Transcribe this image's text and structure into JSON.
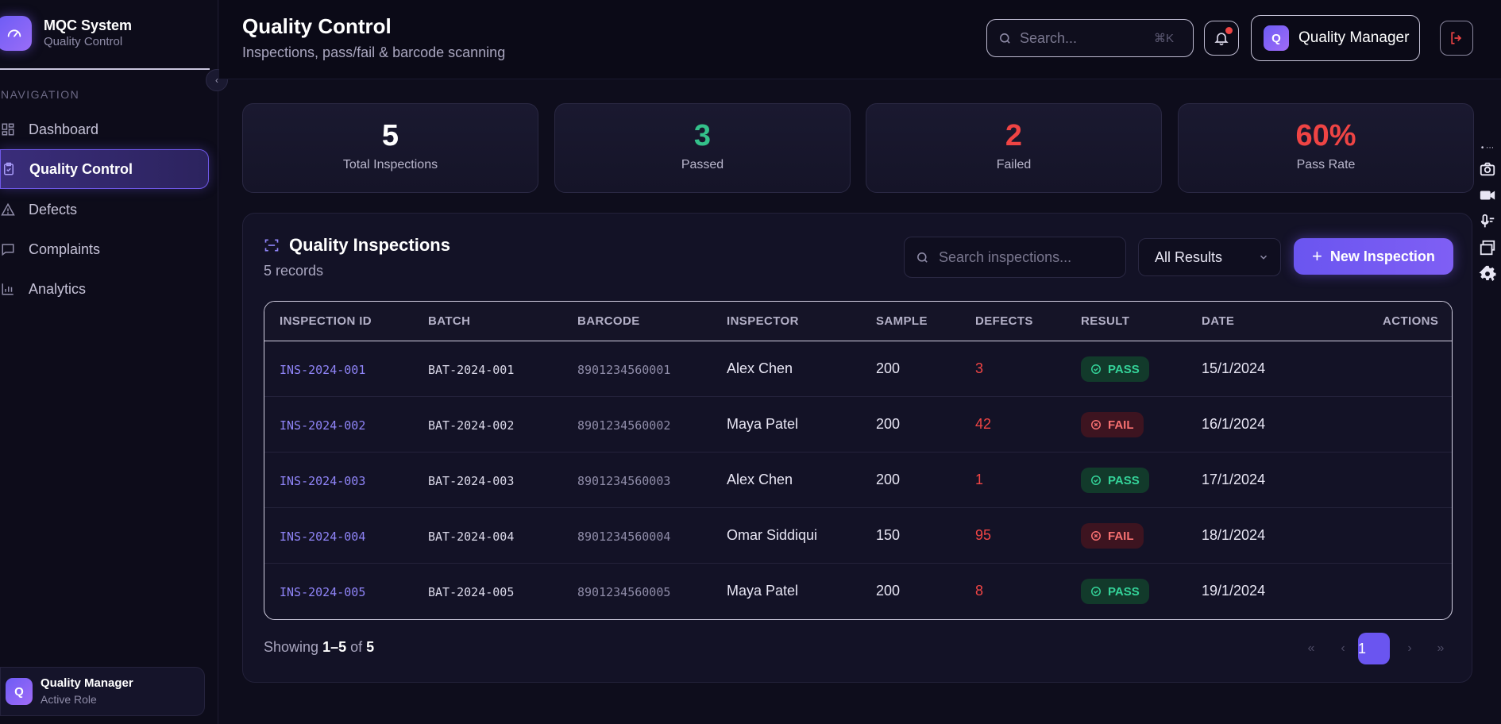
{
  "brand": {
    "title": "MQC System",
    "subtitle": "Quality Control"
  },
  "sidebar": {
    "heading": "NAVIGATION",
    "items": [
      {
        "label": "Dashboard",
        "icon": "grid-icon",
        "active": false
      },
      {
        "label": "Quality Control",
        "icon": "clipboard-check-icon",
        "active": true
      },
      {
        "label": "Defects",
        "icon": "warning-icon",
        "active": false
      },
      {
        "label": "Complaints",
        "icon": "message-icon",
        "active": false
      },
      {
        "label": "Analytics",
        "icon": "bar-chart-icon",
        "active": false
      }
    ],
    "role": {
      "initial": "Q",
      "name": "Quality Manager",
      "sub": "Active Role"
    }
  },
  "header": {
    "title": "Quality Control",
    "subtitle": "Inspections, pass/fail & barcode scanning",
    "search_placeholder": "Search...",
    "shortcut": "⌘K",
    "user_initial": "Q",
    "user_name": "Quality Manager"
  },
  "stats": [
    {
      "value": "5",
      "label": "Total Inspections",
      "color": "#ffffff"
    },
    {
      "value": "3",
      "label": "Passed",
      "color": "#34c08a"
    },
    {
      "value": "2",
      "label": "Failed",
      "color": "#ef4444"
    },
    {
      "value": "60%",
      "label": "Pass Rate",
      "color": "#ef4444"
    }
  ],
  "panel": {
    "title": "Quality Inspections",
    "subtitle": "5 records",
    "search_placeholder": "Search inspections...",
    "filter_value": "All Results",
    "new_button": "New Inspection"
  },
  "table": {
    "columns": [
      "INSPECTION ID",
      "BATCH",
      "BARCODE",
      "INSPECTOR",
      "SAMPLE",
      "DEFECTS",
      "RESULT",
      "DATE",
      "ACTIONS"
    ],
    "rows": [
      {
        "id": "INS-2024-001",
        "batch": "BAT-2024-001",
        "barcode": "8901234560001",
        "inspector": "Alex Chen",
        "sample": "200",
        "defects": "3",
        "result": "PASS",
        "date": "15/1/2024"
      },
      {
        "id": "INS-2024-002",
        "batch": "BAT-2024-002",
        "barcode": "8901234560002",
        "inspector": "Maya Patel",
        "sample": "200",
        "defects": "42",
        "result": "FAIL",
        "date": "16/1/2024"
      },
      {
        "id": "INS-2024-003",
        "batch": "BAT-2024-003",
        "barcode": "8901234560003",
        "inspector": "Alex Chen",
        "sample": "200",
        "defects": "1",
        "result": "PASS",
        "date": "17/1/2024"
      },
      {
        "id": "INS-2024-004",
        "batch": "BAT-2024-004",
        "barcode": "8901234560004",
        "inspector": "Omar Siddiqui",
        "sample": "150",
        "defects": "95",
        "result": "FAIL",
        "date": "18/1/2024"
      },
      {
        "id": "INS-2024-005",
        "batch": "BAT-2024-005",
        "barcode": "8901234560005",
        "inspector": "Maya Patel",
        "sample": "200",
        "defects": "8",
        "result": "PASS",
        "date": "19/1/2024"
      }
    ]
  },
  "pagination": {
    "showing_prefix": "Showing",
    "range": "1–5",
    "of_label": "of",
    "total": "5",
    "current_page": "1",
    "first": "«",
    "prev": "‹",
    "next": "›",
    "last": "»"
  }
}
